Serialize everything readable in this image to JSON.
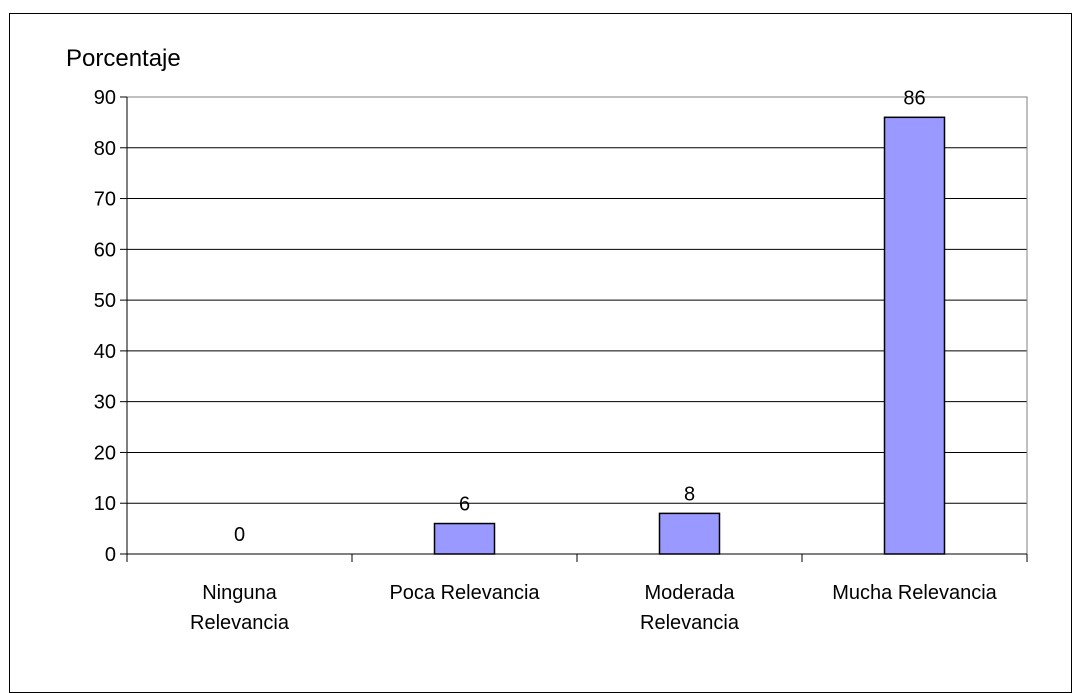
{
  "chart_data": {
    "type": "bar",
    "title": "",
    "xlabel": "",
    "ylabel": "Porcentaje",
    "categories": [
      [
        "Ninguna",
        "Relevancia"
      ],
      [
        "Poca Relevancia"
      ],
      [
        "Moderada",
        "Relevancia"
      ],
      [
        "Mucha Relevancia"
      ]
    ],
    "values": [
      0,
      6,
      8,
      86
    ],
    "data_labels": [
      "0",
      "6",
      "8",
      "86"
    ],
    "ylim": [
      0,
      90
    ],
    "yticks": [
      0,
      10,
      20,
      30,
      40,
      50,
      60,
      70,
      80,
      90
    ],
    "grid": true,
    "legend": "none",
    "colors": {
      "bar_fill": "#9999ff",
      "bar_stroke": "#000000",
      "grid": "#000000",
      "plot_border": "#808080"
    }
  }
}
